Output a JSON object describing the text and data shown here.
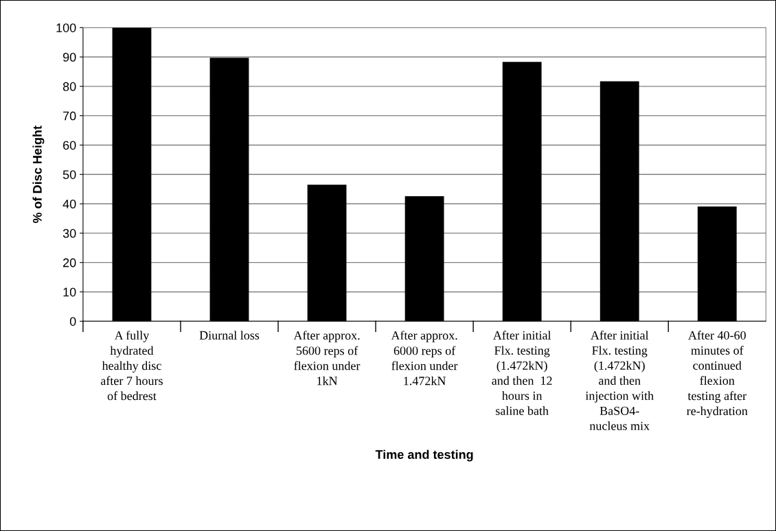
{
  "chart_data": {
    "type": "bar",
    "xlabel": "Time and testing",
    "ylabel": "% of Disc Height",
    "categories": [
      "A fully\nhydrated\nhealthy disc\nafter 7 hours\nof bedrest",
      "Diurnal loss",
      "After approx.\n5600 reps of\nflexion under\n1kN",
      "After approx.\n6000 reps of\nflexion under\n1.472kN",
      "After initial\nFlx. testing\n(1.472kN)\nand then  12\nhours in\nsaline bath",
      "After initial\nFlx. testing\n(1.472kN)\nand then\ninjection with\nBaSO4-\nnucleus mix",
      "After 40-60\nminutes of\ncontinued\nflexion\ntesting after\nre-hydration"
    ],
    "values": [
      100,
      89.7,
      46.5,
      42.6,
      88.3,
      81.7,
      39.1
    ],
    "color": "#000000",
    "ylim": [
      0,
      100
    ],
    "yticks": [
      0,
      10,
      20,
      30,
      40,
      50,
      60,
      70,
      80,
      90,
      100
    ],
    "grid": "y"
  }
}
